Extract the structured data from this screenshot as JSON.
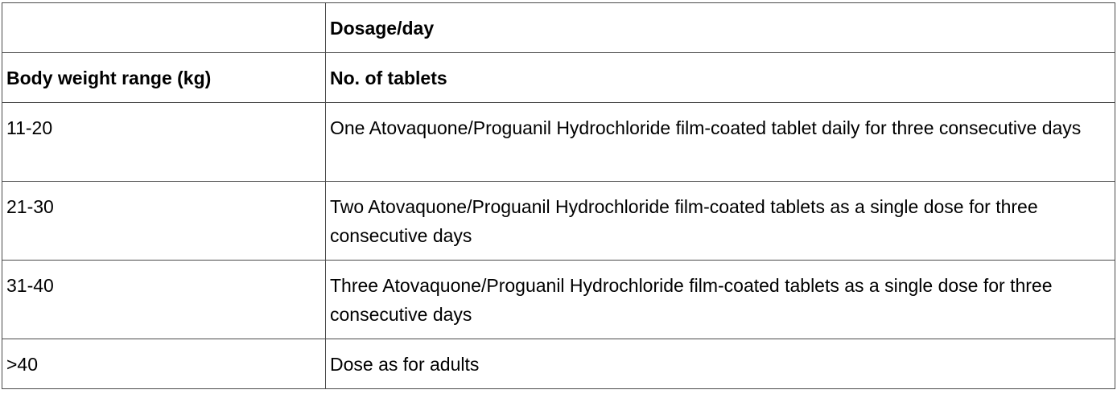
{
  "table": {
    "header_top": {
      "weight": "",
      "dose": "Dosage/day"
    },
    "header": {
      "weight": "Body weight range (kg)",
      "dose": "No. of tablets"
    },
    "rows": [
      {
        "weight": "11-20",
        "dose": "One Atovaquone/Proguanil Hydrochloride film-coated tablet daily for three consecutive days"
      },
      {
        "weight": "21-30",
        "dose": "Two Atovaquone/Proguanil Hydrochloride film-coated tablets as a single dose for three consecutive days"
      },
      {
        "weight": "31-40",
        "dose": "Three Atovaquone/Proguanil Hydrochloride film-coated tablets as a single dose for three consecutive days"
      },
      {
        "weight": ">40",
        "dose": "Dose as for adults"
      }
    ]
  }
}
